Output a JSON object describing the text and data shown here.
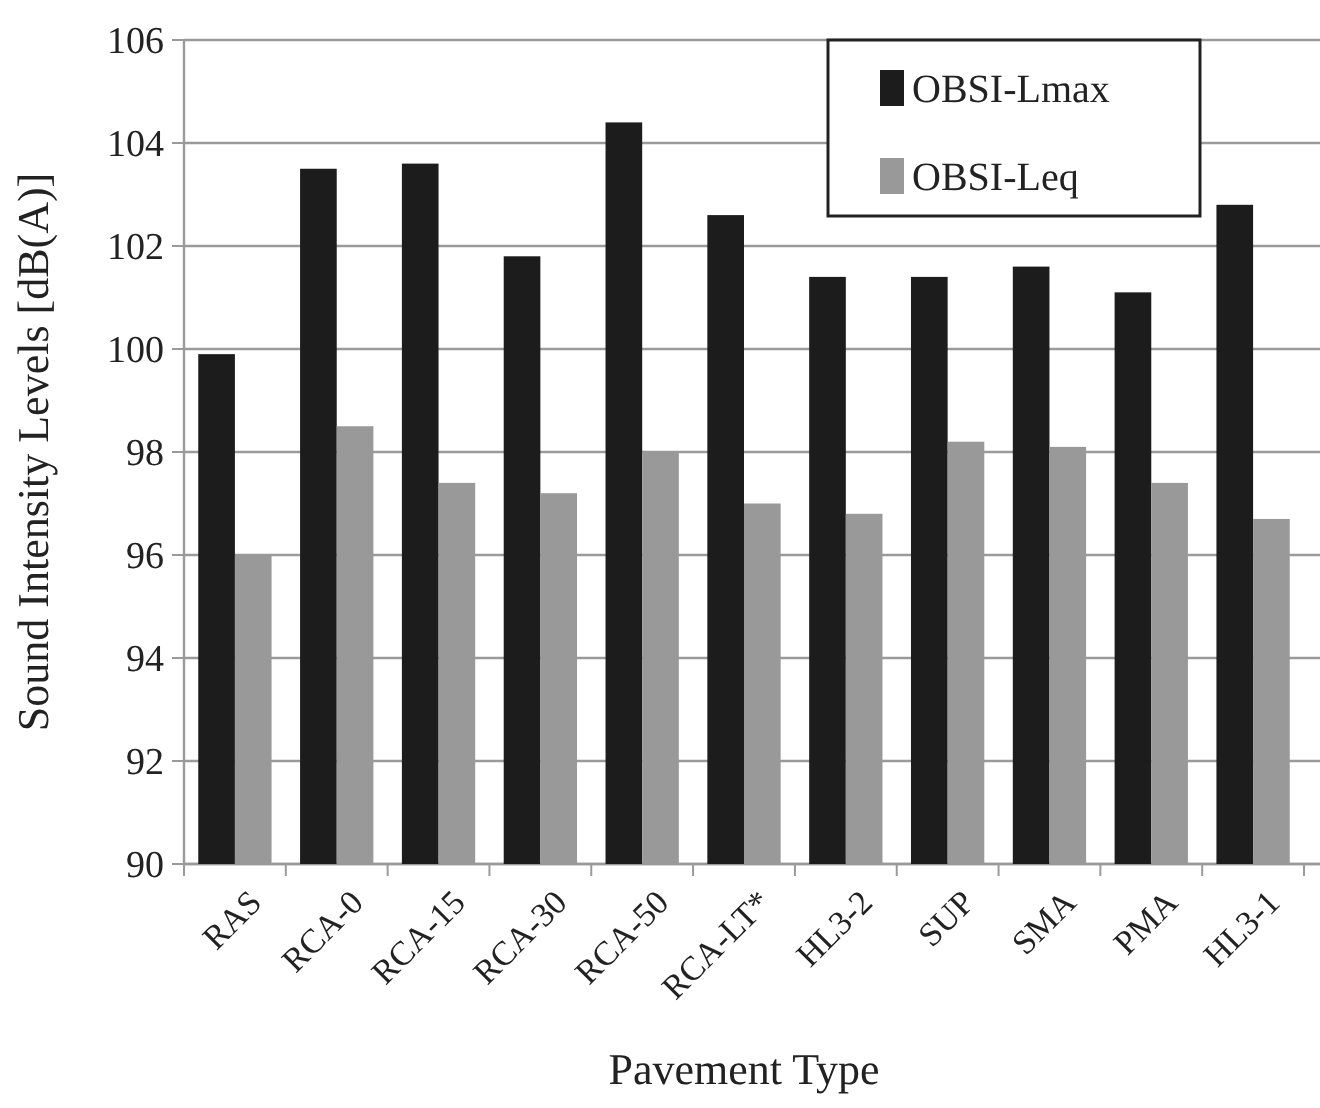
{
  "chart_data": {
    "type": "bar",
    "xlabel": "Pavement Type",
    "ylabel": "Sound Intensity Levels [dB(A)]",
    "categories": [
      "RAS",
      "RCA-0",
      "RCA-15",
      "RCA-30",
      "RCA-50",
      "RCA-LT*",
      "HL3-2",
      "SUP",
      "SMA",
      "PMA",
      "HL3-1"
    ],
    "series": [
      {
        "name": "OBSI-Lmax",
        "color": "#1c1c1c",
        "values": [
          99.9,
          103.5,
          103.6,
          101.8,
          104.4,
          102.6,
          101.4,
          101.4,
          101.6,
          101.1,
          102.8
        ]
      },
      {
        "name": "OBSI-Leq",
        "color": "#999999",
        "values": [
          96.0,
          98.5,
          97.4,
          97.2,
          98.0,
          97.0,
          96.8,
          98.2,
          98.1,
          97.4,
          96.7
        ]
      }
    ],
    "ylim": [
      90,
      106
    ],
    "yticks": [
      90,
      92,
      94,
      96,
      98,
      100,
      102,
      104,
      106
    ],
    "grid": "y",
    "legend": "top right"
  }
}
